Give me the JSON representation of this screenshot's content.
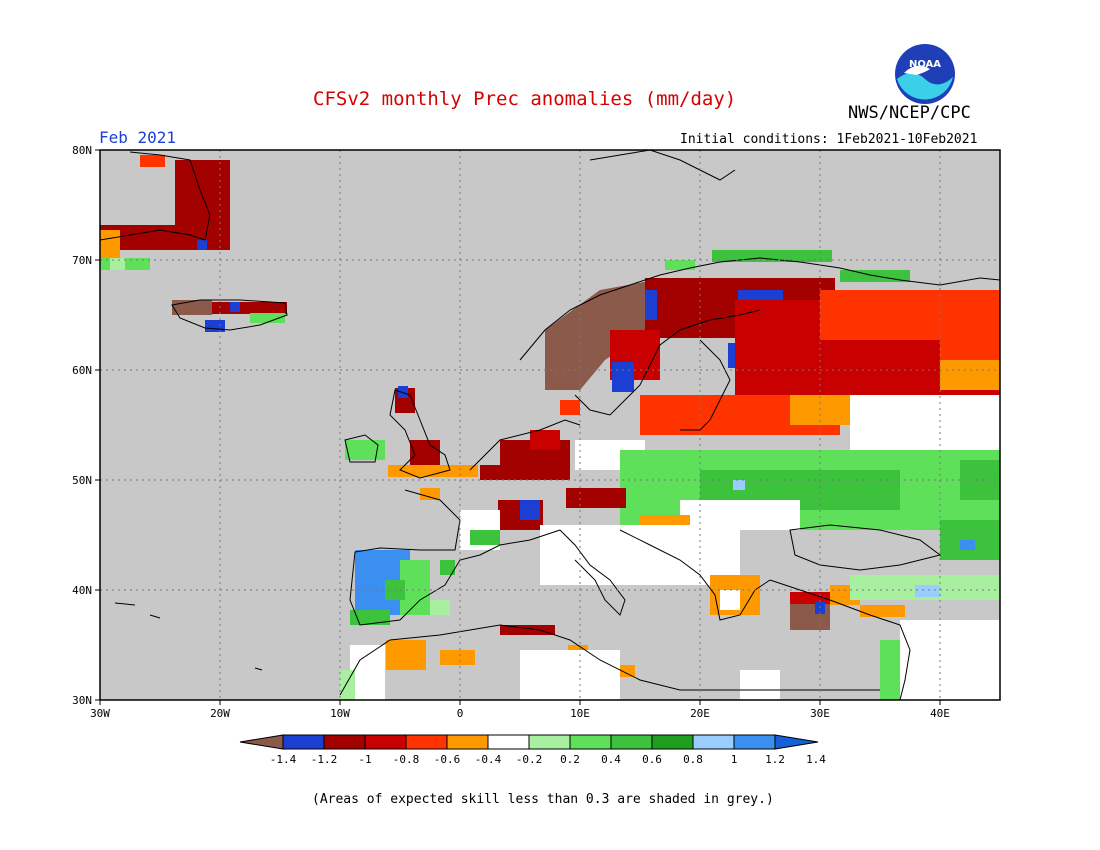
{
  "header": {
    "title": "CFSv2 monthly Prec anomalies (mm/day)",
    "agency": "NWS/NCEP/CPC",
    "month": "Feb 2021",
    "initial_conditions": "Initial conditions: 1Feb2021-10Feb2021",
    "logo_text": "NOAA"
  },
  "footnote": "(Areas of expected skill less than 0.3 are shaded in grey.)",
  "map": {
    "region": "Europe",
    "lon_range": [
      -30,
      45
    ],
    "lat_range": [
      30,
      80
    ],
    "lat_labels": [
      "80N",
      "70N",
      "60N",
      "50N",
      "40N",
      "30N"
    ],
    "lon_labels": [
      "30W",
      "20W",
      "10W",
      "0",
      "10E",
      "20E",
      "30E",
      "40E"
    ],
    "colors": {
      "low_skill_grey": "#c8c8c8",
      "frame": "#000000"
    }
  },
  "colorbar": {
    "tick_labels": [
      "-1.4",
      "-1.2",
      "-1",
      "-0.8",
      "-0.6",
      "-0.4",
      "-0.2",
      "0.2",
      "0.4",
      "0.6",
      "0.8",
      "1",
      "1.2",
      "1.4"
    ],
    "colors": [
      "#8b5a4a",
      "#1a3fd2",
      "#a30000",
      "#c80000",
      "#ff3300",
      "#ff9900",
      "#ffffff",
      "#a8f0a0",
      "#5ee05a",
      "#3cc23c",
      "#1e9e1e",
      "#99ccff",
      "#3b8ff0",
      "#1460d8"
    ]
  }
}
